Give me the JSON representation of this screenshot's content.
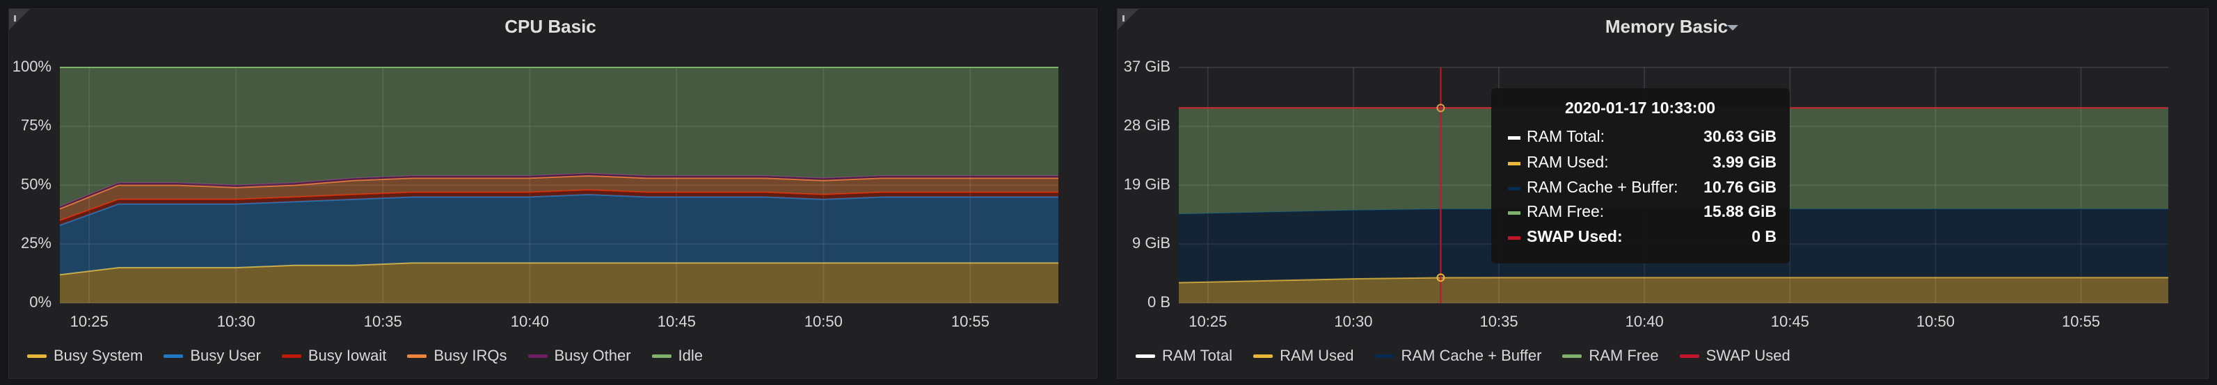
{
  "chart_data": [
    {
      "type": "area",
      "title": "CPU Basic",
      "stacked": true,
      "grid": true,
      "legend": "bottom",
      "fill_opacity": 0.4,
      "xlim": [
        "10:24",
        "10:58"
      ],
      "xticks": [
        "10:25",
        "10:30",
        "10:35",
        "10:40",
        "10:45",
        "10:50",
        "10:55"
      ],
      "ylim": [
        0,
        100
      ],
      "yticks": [
        {
          "value": 0,
          "label": "0%"
        },
        {
          "value": 25,
          "label": "25%"
        },
        {
          "value": 50,
          "label": "50%"
        },
        {
          "value": 75,
          "label": "75%"
        },
        {
          "value": 100,
          "label": "100%"
        }
      ],
      "x": [
        "10:24",
        "10:26",
        "10:28",
        "10:30",
        "10:32",
        "10:34",
        "10:36",
        "10:38",
        "10:40",
        "10:42",
        "10:44",
        "10:46",
        "10:48",
        "10:50",
        "10:52",
        "10:54",
        "10:56",
        "10:58"
      ],
      "series": [
        {
          "name": "Busy System",
          "color": "#EAB839",
          "values": [
            12,
            15,
            15,
            15,
            16,
            16,
            17,
            17,
            17,
            17,
            17,
            17,
            17,
            17,
            17,
            17,
            17,
            17
          ]
        },
        {
          "name": "Busy User",
          "color": "#1F78C1",
          "values": [
            21,
            27,
            27,
            27,
            27,
            28,
            28,
            28,
            28,
            29,
            28,
            28,
            28,
            27,
            28,
            28,
            28,
            28
          ]
        },
        {
          "name": "Busy Iowait",
          "color": "#BF1B00",
          "values": [
            2,
            2,
            2,
            2,
            2,
            2,
            2,
            2,
            2,
            2,
            2,
            2,
            2,
            2,
            2,
            2,
            2,
            2
          ]
        },
        {
          "name": "Busy IRQs",
          "color": "#EF843C",
          "values": [
            5,
            6,
            6,
            5,
            5,
            6,
            6,
            6,
            6,
            6,
            6,
            6,
            6,
            6,
            6,
            6,
            6,
            6
          ]
        },
        {
          "name": "Busy Other",
          "color": "#6D1F62",
          "values": [
            1,
            1,
            1,
            1,
            1,
            1,
            1,
            1,
            1,
            1,
            1,
            1,
            1,
            1,
            1,
            1,
            1,
            1
          ]
        },
        {
          "name": "Idle",
          "color": "#7EB26D",
          "values": [
            59,
            49,
            49,
            50,
            49,
            47,
            46,
            46,
            46,
            45,
            46,
            46,
            46,
            47,
            46,
            46,
            46,
            46
          ]
        }
      ]
    },
    {
      "type": "area",
      "title": "Memory Basic",
      "stacked": true,
      "grid": true,
      "legend": "bottom",
      "fill_opacity": 0.4,
      "xlim": [
        "10:24",
        "10:58"
      ],
      "xticks": [
        "10:25",
        "10:30",
        "10:35",
        "10:40",
        "10:45",
        "10:50",
        "10:55"
      ],
      "ylim": [
        0,
        37
      ],
      "yticks": [
        {
          "value": 0,
          "label": "0 B"
        },
        {
          "value": 9.25,
          "label": "9 GiB"
        },
        {
          "value": 18.5,
          "label": "19 GiB"
        },
        {
          "value": 27.75,
          "label": "28 GiB"
        },
        {
          "value": 37,
          "label": "37 GiB"
        }
      ],
      "x": [
        "10:24",
        "10:27",
        "10:30",
        "10:33",
        "10:36",
        "10:39",
        "10:42",
        "10:45",
        "10:48",
        "10:51",
        "10:54",
        "10:57",
        "10:58"
      ],
      "series": [
        {
          "name": "RAM Total",
          "color": "#FFFFFF",
          "stack": false,
          "fill": false,
          "values": [
            30.63,
            30.63,
            30.63,
            30.63,
            30.63,
            30.63,
            30.63,
            30.63,
            30.63,
            30.63,
            30.63,
            30.63,
            30.63
          ]
        },
        {
          "name": "RAM Used",
          "color": "#EAB839",
          "values": [
            3.2,
            3.5,
            3.8,
            3.99,
            4,
            4,
            4,
            4,
            4,
            4,
            4,
            4,
            4
          ]
        },
        {
          "name": "RAM Cache + Buffer",
          "color": "#052B51",
          "values": [
            10.76,
            10.76,
            10.76,
            10.76,
            10.76,
            10.76,
            10.76,
            10.76,
            10.76,
            10.76,
            10.76,
            10.76,
            10.76
          ]
        },
        {
          "name": "RAM Free",
          "color": "#7EB26D",
          "values": [
            16.67,
            16.37,
            16.07,
            15.88,
            15.87,
            15.87,
            15.87,
            15.87,
            15.87,
            15.87,
            15.87,
            15.87,
            15.87
          ]
        },
        {
          "name": "SWAP Used",
          "color": "#C4162A",
          "fill": false,
          "values": [
            0,
            0,
            0,
            0,
            0,
            0,
            0,
            0,
            0,
            0,
            0,
            0,
            0
          ]
        }
      ],
      "tooltip": {
        "title": "2020-01-17 10:33:00",
        "x": "10:33",
        "names": [
          "RAM Total:",
          "RAM Used:",
          "RAM Cache + Buffer:",
          "RAM Free:",
          "SWAP Used:"
        ],
        "value_labels": [
          "30.63 GiB",
          "3.99 GiB",
          "10.76 GiB",
          "15.88 GiB",
          "0 B"
        ]
      }
    }
  ]
}
